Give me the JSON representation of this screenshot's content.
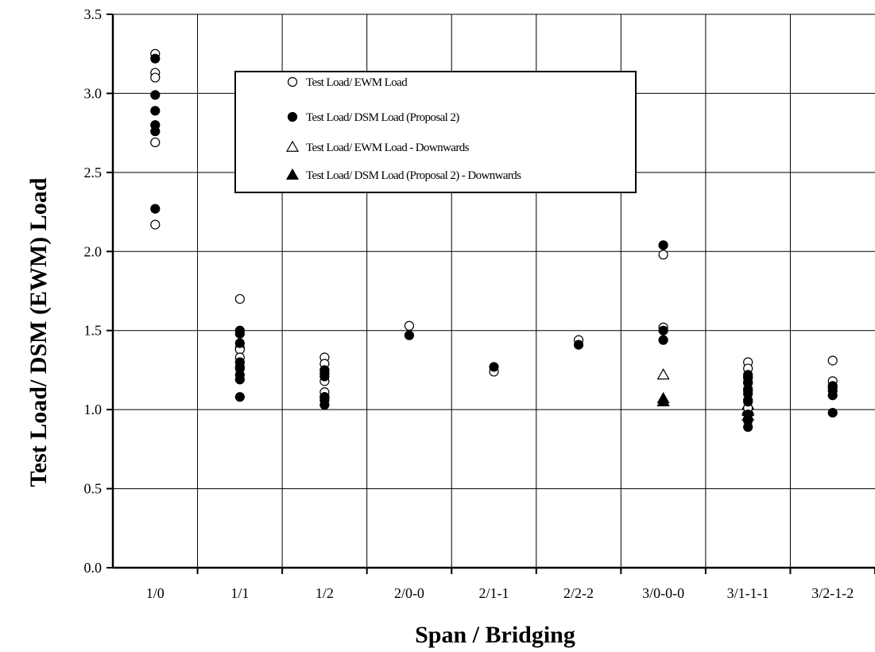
{
  "chart_data": {
    "type": "scatter",
    "xlabel": "Span / Bridging",
    "ylabel": "Test Load/ DSM (EWM) Load",
    "categories": [
      "1/0",
      "1/1",
      "1/2",
      "2/0-0",
      "2/1-1",
      "2/2-2",
      "3/0-0-0",
      "3/1-1-1",
      "3/2-1-2"
    ],
    "ylim": [
      0.0,
      3.5
    ],
    "yticks": [
      "0.0",
      "0.5",
      "1.0",
      "1.5",
      "2.0",
      "2.5",
      "3.0",
      "3.5"
    ],
    "grid": true,
    "legend_position": "top-center",
    "series": [
      {
        "name": "Test Load/ EWM Load",
        "marker": "open-circle",
        "points": [
          [
            "1/0",
            3.25
          ],
          [
            "1/0",
            3.13
          ],
          [
            "1/0",
            3.1
          ],
          [
            "1/0",
            2.69
          ],
          [
            "1/0",
            2.17
          ],
          [
            "1/1",
            1.7
          ],
          [
            "1/1",
            1.39
          ],
          [
            "1/1",
            1.38
          ],
          [
            "1/1",
            1.33
          ],
          [
            "1/1",
            1.27
          ],
          [
            "1/2",
            1.33
          ],
          [
            "1/2",
            1.29
          ],
          [
            "1/2",
            1.25
          ],
          [
            "1/2",
            1.18
          ],
          [
            "1/2",
            1.11
          ],
          [
            "1/2",
            1.08
          ],
          [
            "2/0-0",
            1.53
          ],
          [
            "2/1-1",
            1.24
          ],
          [
            "2/2-2",
            1.44
          ],
          [
            "3/0-0-0",
            1.98
          ],
          [
            "3/0-0-0",
            1.52
          ],
          [
            "3/1-1-1",
            1.3
          ],
          [
            "3/1-1-1",
            1.26
          ],
          [
            "3/1-1-1",
            1.21
          ],
          [
            "3/1-1-1",
            1.17
          ],
          [
            "3/1-1-1",
            1.12
          ],
          [
            "3/1-1-1",
            1.06
          ],
          [
            "3/1-1-1",
            1.01
          ],
          [
            "3/2-1-2",
            1.31
          ],
          [
            "3/2-1-2",
            1.18
          ],
          [
            "3/2-1-2",
            1.14
          ]
        ]
      },
      {
        "name": "Test Load/ DSM Load (Proposal 2)",
        "marker": "filled-circle",
        "points": [
          [
            "1/0",
            3.22
          ],
          [
            "1/0",
            2.99
          ],
          [
            "1/0",
            2.89
          ],
          [
            "1/0",
            2.8
          ],
          [
            "1/0",
            2.76
          ],
          [
            "1/0",
            2.27
          ],
          [
            "1/1",
            1.5
          ],
          [
            "1/1",
            1.48
          ],
          [
            "1/1",
            1.42
          ],
          [
            "1/1",
            1.3
          ],
          [
            "1/1",
            1.26
          ],
          [
            "1/1",
            1.22
          ],
          [
            "1/1",
            1.19
          ],
          [
            "1/1",
            1.08
          ],
          [
            "1/2",
            1.25
          ],
          [
            "1/2",
            1.23
          ],
          [
            "1/2",
            1.21
          ],
          [
            "1/2",
            1.08
          ],
          [
            "1/2",
            1.06
          ],
          [
            "1/2",
            1.03
          ],
          [
            "2/0-0",
            1.47
          ],
          [
            "2/1-1",
            1.27
          ],
          [
            "2/2-2",
            1.41
          ],
          [
            "3/0-0-0",
            2.04
          ],
          [
            "3/0-0-0",
            1.5
          ],
          [
            "3/0-0-0",
            1.44
          ],
          [
            "3/1-1-1",
            1.22
          ],
          [
            "3/1-1-1",
            1.2
          ],
          [
            "3/1-1-1",
            1.17
          ],
          [
            "3/1-1-1",
            1.13
          ],
          [
            "3/1-1-1",
            1.1
          ],
          [
            "3/1-1-1",
            1.05
          ],
          [
            "3/1-1-1",
            0.97
          ],
          [
            "3/1-1-1",
            0.93
          ],
          [
            "3/1-1-1",
            0.89
          ],
          [
            "3/2-1-2",
            1.15
          ],
          [
            "3/2-1-2",
            1.12
          ],
          [
            "3/2-1-2",
            1.09
          ],
          [
            "3/2-1-2",
            0.98
          ]
        ]
      },
      {
        "name": "Test Load/ EWM Load - Downwards",
        "marker": "open-triangle",
        "points": [
          [
            "3/0-0-0",
            1.22
          ],
          [
            "3/0-0-0",
            1.05
          ],
          [
            "3/1-1-1",
            1.03
          ],
          [
            "3/1-1-1",
            0.99
          ]
        ]
      },
      {
        "name": "Test Load/ DSM Load (Proposal 2) - Downwards",
        "marker": "filled-triangle",
        "points": [
          [
            "3/0-0-0",
            1.07
          ],
          [
            "3/0-0-0",
            1.05
          ],
          [
            "3/1-1-1",
            1.0
          ],
          [
            "3/1-1-1",
            0.96
          ]
        ]
      }
    ]
  }
}
